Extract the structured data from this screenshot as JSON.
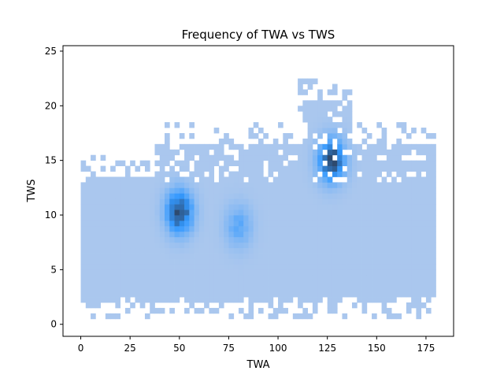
{
  "chart_data": {
    "type": "heatmap",
    "title": "Frequency of TWA vs TWS",
    "xlabel": "TWA",
    "ylabel": "TWS",
    "xlim": [
      -9,
      189
    ],
    "ylim": [
      -1.1,
      25.5
    ],
    "xticks": [
      0,
      25,
      50,
      75,
      100,
      125,
      150,
      175
    ],
    "yticks": [
      0,
      5,
      10,
      15,
      20,
      25
    ],
    "grid": false,
    "legend": "none",
    "colors": {
      "low": "#aac7ee",
      "mid": "#3399ff",
      "high": "#2e4a6e",
      "axis": "#000000"
    },
    "bins": {
      "x_step": 2.5,
      "y_step": 0.5
    },
    "density_regions": [
      {
        "x_range": [
          0,
          180
        ],
        "y_range": [
          2.0,
          13.5
        ],
        "level": "low"
      },
      {
        "x_range": [
          38,
          180
        ],
        "y_range": [
          13.5,
          16.5
        ],
        "level": "low"
      },
      {
        "x_range": [
          112,
          137
        ],
        "y_range": [
          16.5,
          20.5
        ],
        "level": "low"
      }
    ],
    "hotspots": [
      {
        "twa": 50,
        "tws": 10.3,
        "peak": 1.0
      },
      {
        "twa": 127,
        "tws": 15.0,
        "peak": 1.0
      },
      {
        "twa": 80,
        "tws": 9.0,
        "peak": 0.35
      }
    ]
  }
}
